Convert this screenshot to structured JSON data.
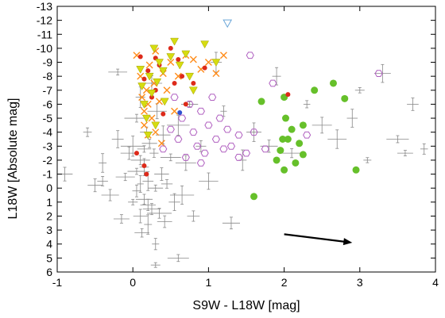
{
  "chart_data": {
    "type": "scatter",
    "xlabel": "S9W - L18W [mag]",
    "ylabel": "L18W [Absolute mag]",
    "xlim": [
      -1,
      4
    ],
    "ylim": [
      6,
      -13
    ],
    "y_axis_inverted": true,
    "xticks": [
      "-1",
      "0",
      "1",
      "2",
      "3",
      "4"
    ],
    "yticks": [
      "-13",
      "-12",
      "-11",
      "-10",
      "-9",
      "-8",
      "-7",
      "-6",
      "-5",
      "-4",
      "-3",
      "-2",
      "-1",
      "0",
      "1",
      "2",
      "3",
      "4",
      "5",
      "6"
    ],
    "grid": false,
    "legend": "none",
    "colors": {
      "gray": "#888888",
      "orange": "#ff8c1a",
      "purple": "#b060c0",
      "green": "#66c02a",
      "red": "#dd2a1a",
      "yellow": "#d6dc10",
      "blue": "#3050d0",
      "arrow": "#000000"
    },
    "series": [
      {
        "marker": "gray-errorbar-point",
        "color": "gray",
        "description_points": "dense cloud with error bars",
        "points": [
          [
            -0.9,
            -1.0
          ],
          [
            -0.6,
            -4.0
          ],
          [
            -0.5,
            -0.2
          ],
          [
            -0.4,
            -1.8
          ],
          [
            -0.3,
            0.5
          ],
          [
            -0.2,
            -3.5
          ],
          [
            -0.2,
            -8.3
          ],
          [
            -0.15,
            2.2
          ],
          [
            -0.1,
            -0.8
          ],
          [
            -0.05,
            -2.5
          ],
          [
            0.0,
            1.0
          ],
          [
            0.0,
            -3.0
          ],
          [
            0.05,
            0.2
          ],
          [
            0.05,
            -5.0
          ],
          [
            0.1,
            2.0
          ],
          [
            0.1,
            -2.0
          ],
          [
            0.1,
            -6.5
          ],
          [
            0.12,
            3.2
          ],
          [
            0.15,
            0.8
          ],
          [
            0.15,
            -1.5
          ],
          [
            0.18,
            -4.0
          ],
          [
            0.2,
            2.6
          ],
          [
            0.2,
            -0.5
          ],
          [
            0.22,
            -3.2
          ],
          [
            0.25,
            1.5
          ],
          [
            0.25,
            -7.5
          ],
          [
            0.28,
            -2.5
          ],
          [
            0.3,
            0.0
          ],
          [
            0.3,
            4.0
          ],
          [
            0.32,
            -5.5
          ],
          [
            0.35,
            1.8
          ],
          [
            0.38,
            -1.0
          ],
          [
            0.4,
            -3.8
          ],
          [
            0.42,
            2.4
          ],
          [
            0.45,
            -0.3
          ],
          [
            0.5,
            -2.2
          ],
          [
            0.55,
            1.0
          ],
          [
            0.6,
            -4.5
          ],
          [
            0.65,
            0.5
          ],
          [
            0.7,
            -1.8
          ],
          [
            0.75,
            -6.0
          ],
          [
            0.8,
            2.0
          ],
          [
            0.9,
            -3.0
          ],
          [
            1.0,
            -0.5
          ],
          [
            1.1,
            -9.0
          ],
          [
            1.2,
            -5.5
          ],
          [
            1.3,
            2.5
          ],
          [
            1.45,
            -2.0
          ],
          [
            1.6,
            -4.0
          ],
          [
            1.8,
            -3.0
          ],
          [
            1.9,
            -8.0
          ],
          [
            2.1,
            -2.5
          ],
          [
            2.3,
            -6.0
          ],
          [
            2.5,
            -4.5
          ],
          [
            2.7,
            -3.5
          ],
          [
            2.9,
            -5.0
          ],
          [
            3.0,
            -7.0
          ],
          [
            3.1,
            -2.0
          ],
          [
            3.3,
            -8.2
          ],
          [
            3.5,
            -3.5
          ],
          [
            3.6,
            -2.5
          ],
          [
            3.7,
            -6.0
          ],
          [
            3.85,
            -2.8
          ],
          [
            -0.4,
            -0.5
          ],
          [
            0.6,
            5.0
          ],
          [
            0.3,
            5.5
          ],
          [
            0.05,
            -1.2
          ],
          [
            0.15,
            -2.8
          ],
          [
            0.2,
            1.2
          ],
          [
            0.1,
            -0.3
          ]
        ]
      },
      {
        "marker": "orange-cross",
        "color": "orange",
        "points": [
          [
            0.05,
            -9.5
          ],
          [
            0.1,
            -8.0
          ],
          [
            0.12,
            -6.5
          ],
          [
            0.15,
            -5.5
          ],
          [
            0.15,
            -4.5
          ],
          [
            0.18,
            -7.0
          ],
          [
            0.2,
            -3.8
          ],
          [
            0.2,
            -6.0
          ],
          [
            0.22,
            -8.8
          ],
          [
            0.25,
            -5.0
          ],
          [
            0.28,
            -7.5
          ],
          [
            0.3,
            -4.0
          ],
          [
            0.3,
            -9.8
          ],
          [
            0.35,
            -6.2
          ],
          [
            0.38,
            -3.2
          ],
          [
            0.4,
            -8.2
          ],
          [
            0.45,
            -7.0
          ],
          [
            0.5,
            -9.0
          ],
          [
            0.55,
            -5.5
          ],
          [
            0.6,
            -8.0
          ],
          [
            0.7,
            -9.5
          ],
          [
            0.8,
            -9.2
          ],
          [
            0.9,
            -8.5
          ],
          [
            1.0,
            -9.0
          ],
          [
            1.1,
            -8.2
          ],
          [
            1.2,
            -9.5
          ]
        ]
      },
      {
        "marker": "purple-open-hexagon",
        "color": "purple",
        "points": [
          [
            0.4,
            -2.8
          ],
          [
            0.5,
            -4.2
          ],
          [
            0.6,
            -3.5
          ],
          [
            0.65,
            -5.0
          ],
          [
            0.7,
            -2.2
          ],
          [
            0.75,
            -6.0
          ],
          [
            0.8,
            -4.0
          ],
          [
            0.85,
            -3.0
          ],
          [
            0.9,
            -5.5
          ],
          [
            0.95,
            -2.5
          ],
          [
            1.0,
            -4.5
          ],
          [
            1.05,
            -6.5
          ],
          [
            1.1,
            -3.5
          ],
          [
            1.15,
            -5.0
          ],
          [
            1.2,
            -2.8
          ],
          [
            1.25,
            -4.2
          ],
          [
            1.3,
            -3.0
          ],
          [
            1.4,
            -3.8
          ],
          [
            1.5,
            -2.5
          ],
          [
            1.55,
            -9.5
          ],
          [
            1.6,
            -4.0
          ],
          [
            1.75,
            -2.8
          ],
          [
            1.85,
            -7.5
          ],
          [
            3.25,
            -8.2
          ],
          [
            2.3,
            -3.8
          ],
          [
            1.4,
            -2.2
          ],
          [
            0.55,
            -6.5
          ],
          [
            0.9,
            -1.8
          ]
        ]
      },
      {
        "marker": "green-filled-circle",
        "color": "green",
        "points": [
          [
            1.6,
            0.6
          ],
          [
            1.7,
            -6.2
          ],
          [
            1.95,
            -2.7
          ],
          [
            1.98,
            -3.5
          ],
          [
            2.0,
            -6.5
          ],
          [
            2.0,
            -1.3
          ],
          [
            2.02,
            -5.0
          ],
          [
            2.05,
            -3.5
          ],
          [
            2.1,
            -4.2
          ],
          [
            2.15,
            -1.8
          ],
          [
            2.2,
            -3.2
          ],
          [
            2.25,
            -4.5
          ],
          [
            2.4,
            -7.0
          ],
          [
            2.65,
            -7.5
          ],
          [
            2.8,
            -6.4
          ],
          [
            2.95,
            -1.3
          ],
          [
            2.25,
            -2.4
          ],
          [
            1.9,
            -2.0
          ]
        ]
      },
      {
        "marker": "red-filled-circle",
        "color": "red",
        "points": [
          [
            0.1,
            -9.4
          ],
          [
            0.15,
            -7.8
          ],
          [
            0.15,
            -1.6
          ],
          [
            0.18,
            -1.0
          ],
          [
            0.2,
            -8.4
          ],
          [
            0.25,
            -6.5
          ],
          [
            0.3,
            -7.0
          ],
          [
            0.3,
            -9.3
          ],
          [
            0.35,
            -8.8
          ],
          [
            0.4,
            -5.3
          ],
          [
            0.5,
            -10.0
          ],
          [
            0.55,
            -7.5
          ],
          [
            0.6,
            -9.2
          ],
          [
            0.65,
            -8.0
          ],
          [
            0.7,
            -6.0
          ],
          [
            0.8,
            -7.5
          ],
          [
            0.05,
            -2.5
          ],
          [
            2.05,
            -6.7
          ],
          [
            0.95,
            -8.6
          ]
        ]
      },
      {
        "marker": "yellow-filled-triangle",
        "color": "yellow",
        "points": [
          [
            0.1,
            -8.5
          ],
          [
            0.12,
            -7.3
          ],
          [
            0.15,
            -6.0
          ],
          [
            0.18,
            -5.0
          ],
          [
            0.2,
            -3.8
          ],
          [
            0.22,
            -8.0
          ],
          [
            0.25,
            -6.8
          ],
          [
            0.28,
            -10.0
          ],
          [
            0.3,
            -4.5
          ],
          [
            0.32,
            -7.6
          ],
          [
            0.35,
            -9.0
          ],
          [
            0.4,
            -8.4
          ],
          [
            0.42,
            -6.2
          ],
          [
            0.5,
            -9.4
          ],
          [
            0.55,
            -10.5
          ],
          [
            0.62,
            -8.8
          ],
          [
            0.7,
            -9.6
          ],
          [
            0.75,
            -8.0
          ],
          [
            0.8,
            -7.0
          ],
          [
            0.95,
            -10.3
          ],
          [
            1.1,
            -9.0
          ]
        ]
      },
      {
        "marker": "blue-filled-circle",
        "color": "blue",
        "points": [
          [
            0.62,
            -5.4
          ]
        ]
      },
      {
        "marker": "light-blue-open-triangle",
        "color": "#6aa6d8",
        "points": [
          [
            1.25,
            -11.8
          ]
        ]
      }
    ],
    "annotation_arrow": {
      "from": [
        2.0,
        3.3
      ],
      "to": [
        2.9,
        3.9
      ]
    }
  }
}
